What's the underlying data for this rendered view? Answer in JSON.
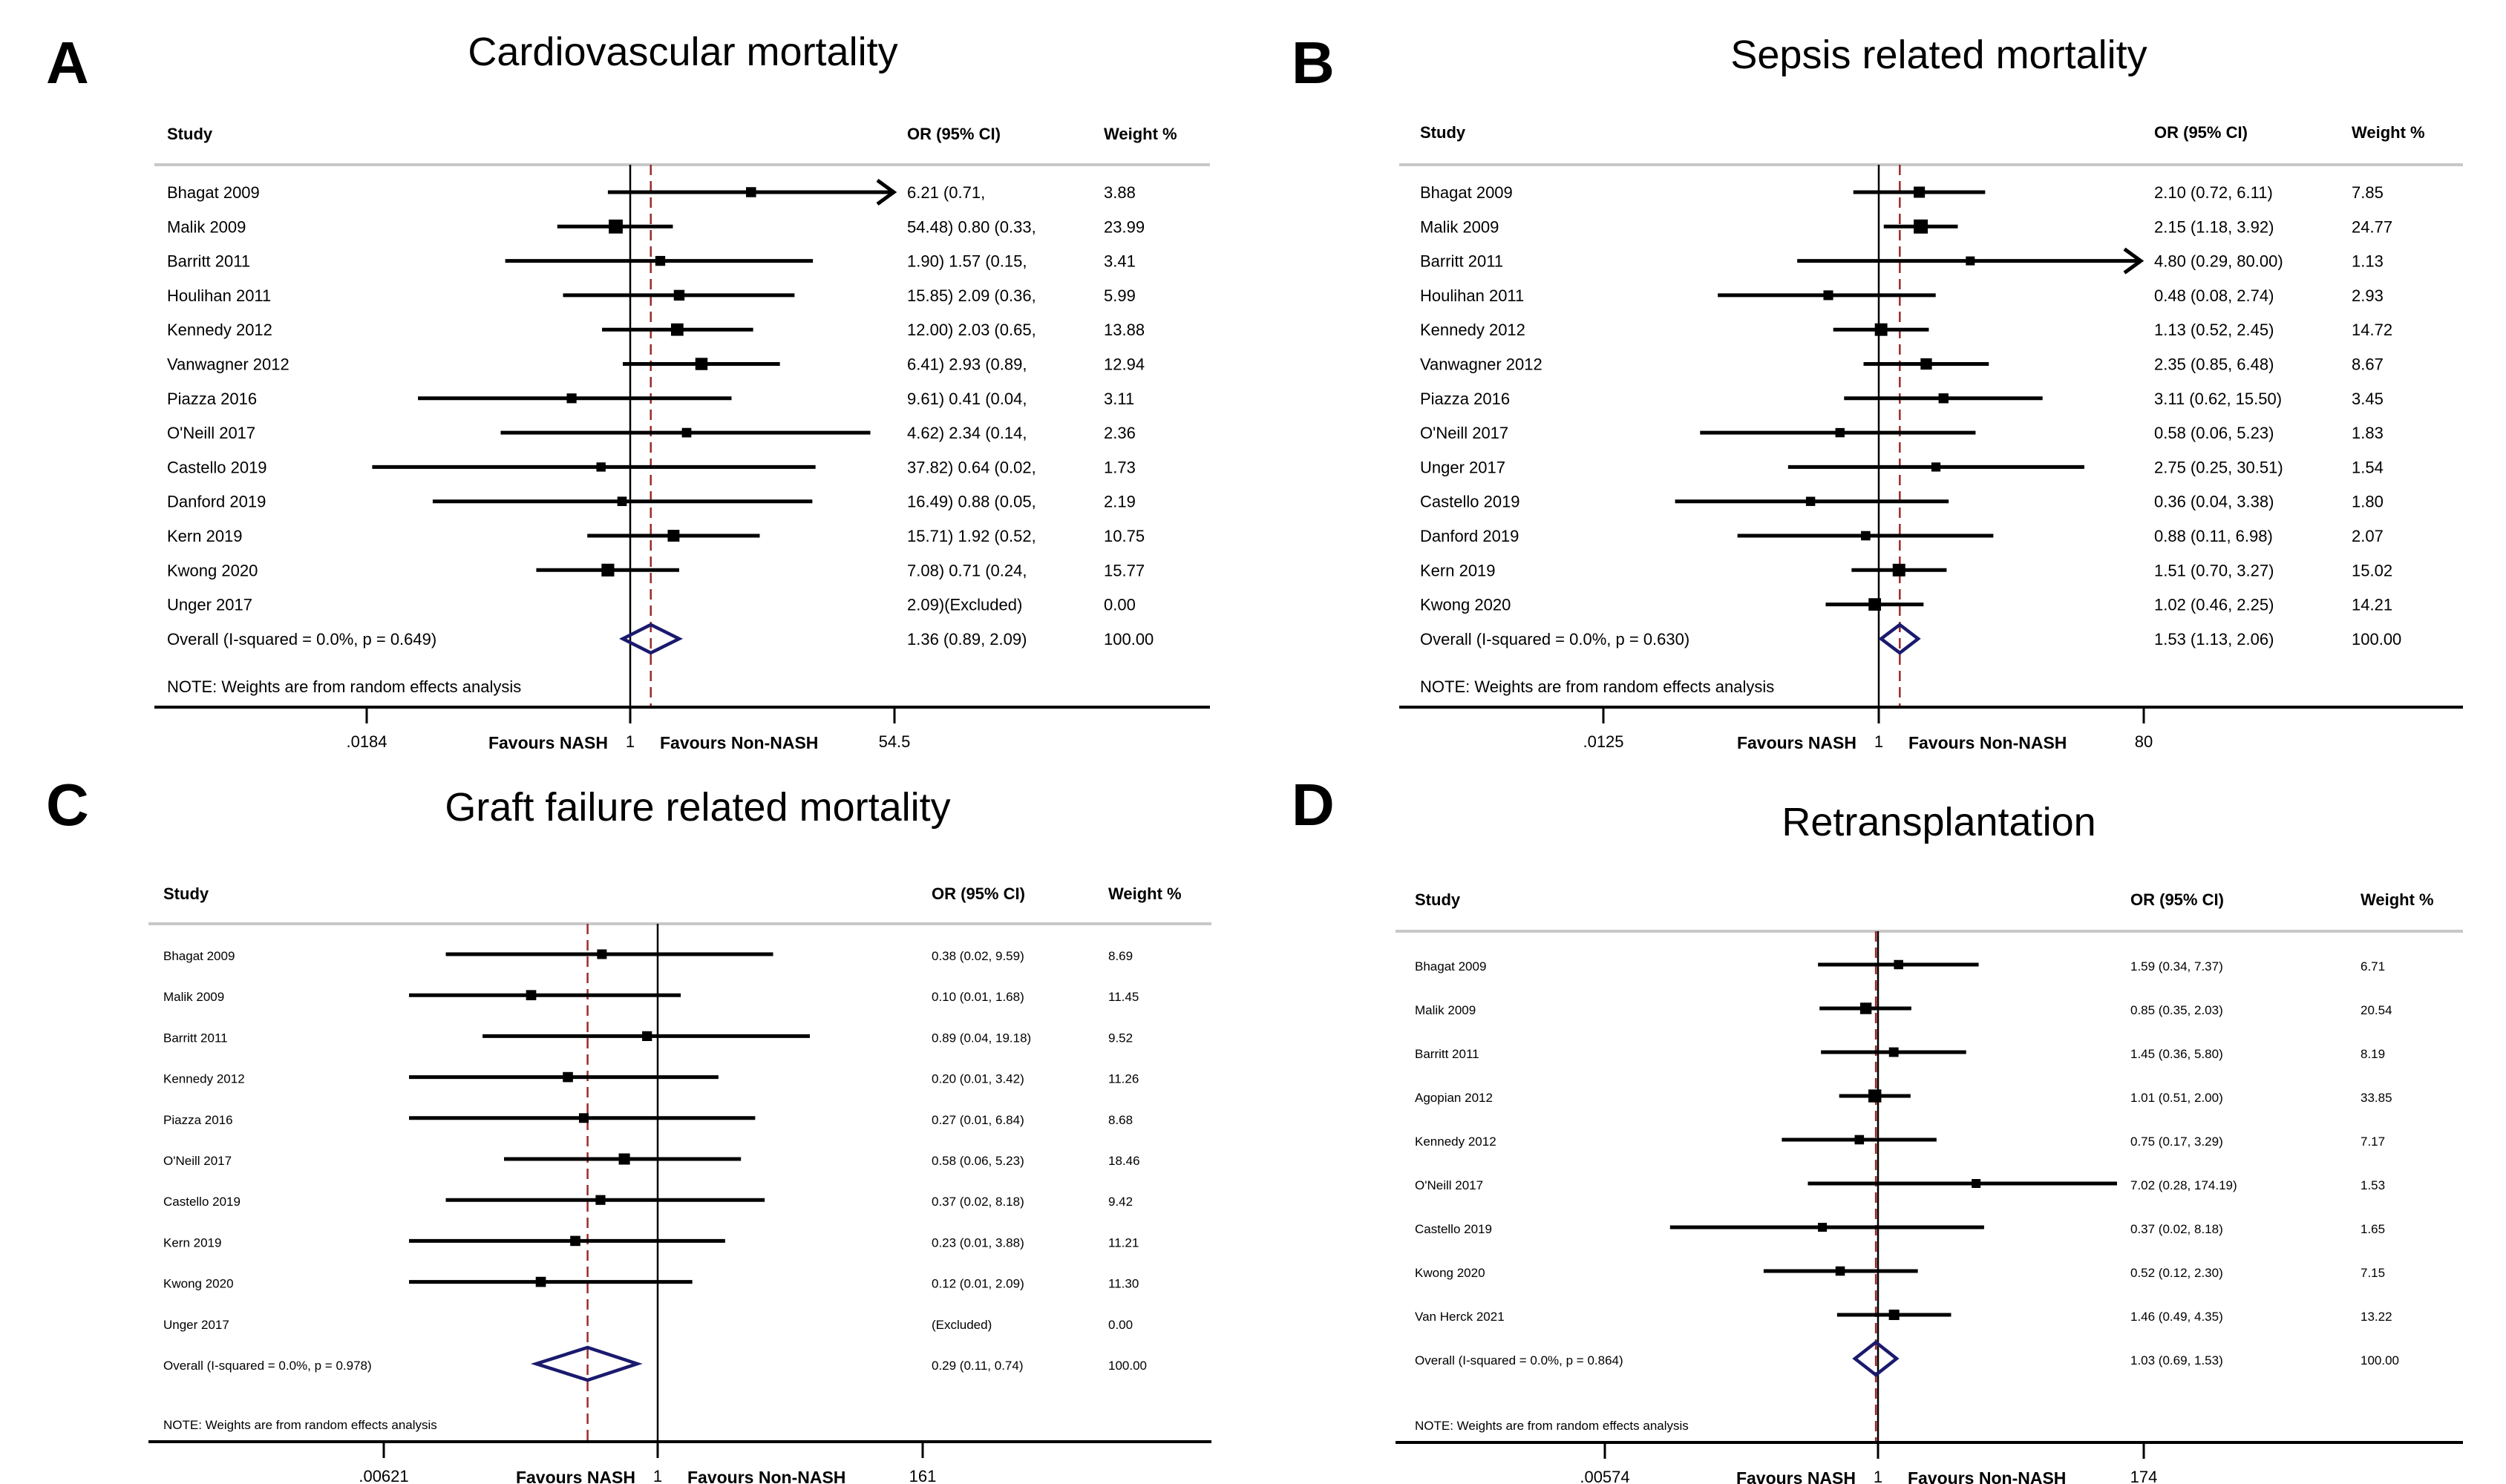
{
  "figure": {
    "panels_count": 4
  },
  "chart_data": [
    {
      "type": "forest",
      "panel_letter": "A",
      "title": "Cardiovascular mortality",
      "columns": {
        "study": "Study",
        "or": "OR (95% CI)",
        "weight": "Weight %"
      },
      "x_scale": "log",
      "xlim": [
        0.0184,
        54.5
      ],
      "ticks": [
        ".0184",
        "1",
        "54.5"
      ],
      "tick_values": [
        0.0184,
        1,
        54.5
      ],
      "favours_left": "Favours NASH",
      "favours_right": "Favours Non-NASH",
      "note": "NOTE: Weights are from random effects analysis",
      "studies": [
        {
          "name": "Bhagat 2009",
          "or": 6.21,
          "lo": 0.71,
          "hi": 54.48,
          "or_text": "6.21  (0.71,",
          "weight": "3.88",
          "arrow": true
        },
        {
          "name": "Malik 2009",
          "or": 0.8,
          "lo": 0.33,
          "hi": 1.9,
          "or_text": "54.48) 0.80  (0.33,",
          "weight": "23.99"
        },
        {
          "name": "Barritt 2011",
          "or": 1.57,
          "lo": 0.15,
          "hi": 15.85,
          "or_text": "1.90) 1.57  (0.15,",
          "weight": "3.41"
        },
        {
          "name": "Houlihan 2011",
          "or": 2.09,
          "lo": 0.36,
          "hi": 12.0,
          "or_text": "15.85) 2.09  (0.36,",
          "weight": "5.99"
        },
        {
          "name": "Kennedy 2012",
          "or": 2.03,
          "lo": 0.65,
          "hi": 6.41,
          "or_text": "12.00) 2.03  (0.65,",
          "weight": "13.88"
        },
        {
          "name": "Vanwagner 2012",
          "or": 2.93,
          "lo": 0.89,
          "hi": 9.61,
          "or_text": "6.41) 2.93  (0.89,",
          "weight": "12.94"
        },
        {
          "name": "Piazza 2016",
          "or": 0.41,
          "lo": 0.04,
          "hi": 4.62,
          "or_text": "9.61) 0.41  (0.04,",
          "weight": "3.11"
        },
        {
          "name": "O'Neill 2017",
          "or": 2.34,
          "lo": 0.14,
          "hi": 37.82,
          "or_text": "4.62) 2.34  (0.14,",
          "weight": "2.36"
        },
        {
          "name": "Castello 2019",
          "or": 0.64,
          "lo": 0.02,
          "hi": 16.49,
          "or_text": "37.82) 0.64  (0.02,",
          "weight": "1.73"
        },
        {
          "name": "Danford 2019",
          "or": 0.88,
          "lo": 0.05,
          "hi": 15.71,
          "or_text": "16.49) 0.88  (0.05,",
          "weight": "2.19"
        },
        {
          "name": "Kern 2019",
          "or": 1.92,
          "lo": 0.52,
          "hi": 7.08,
          "or_text": "15.71) 1.92  (0.52,",
          "weight": "10.75"
        },
        {
          "name": "Kwong 2020",
          "or": 0.71,
          "lo": 0.24,
          "hi": 2.09,
          "or_text": "7.08) 0.71  (0.24,",
          "weight": "15.77"
        },
        {
          "name": "Unger 2017",
          "or": null,
          "lo": null,
          "hi": null,
          "or_text": "2.09)(Excluded)",
          "weight": "0.00",
          "excluded": true
        }
      ],
      "overall": {
        "label": "Overall  (I-squared = 0.0%, p = 0.649)",
        "or": 1.36,
        "lo": 0.89,
        "hi": 2.09,
        "or_text": "1.36  (0.89,  2.09)",
        "weight": "100.00"
      }
    },
    {
      "type": "forest",
      "panel_letter": "B",
      "title": "Sepsis related mortality",
      "columns": {
        "study": "Study",
        "or": "OR (95% CI)",
        "weight": "Weight %"
      },
      "x_scale": "log",
      "xlim": [
        0.0125,
        80
      ],
      "ticks": [
        ".0125",
        "1",
        "80"
      ],
      "tick_values": [
        0.0125,
        1,
        80
      ],
      "favours_left": "Favours NASH",
      "favours_right": "Favours Non-NASH",
      "note": "NOTE: Weights are from random effects analysis",
      "studies": [
        {
          "name": "Bhagat 2009",
          "or": 2.1,
          "lo": 0.72,
          "hi": 6.11,
          "or_text": "2.10 (0.72, 6.11)",
          "weight": "7.85"
        },
        {
          "name": "Malik 2009",
          "or": 2.15,
          "lo": 1.18,
          "hi": 3.92,
          "or_text": "2.15 (1.18, 3.92)",
          "weight": "24.77"
        },
        {
          "name": "Barritt 2011",
          "or": 4.8,
          "lo": 0.29,
          "hi": 80.0,
          "or_text": "4.80 (0.29, 80.00)",
          "weight": "1.13",
          "arrow": true
        },
        {
          "name": "Houlihan 2011",
          "or": 0.48,
          "lo": 0.08,
          "hi": 2.74,
          "or_text": "0.48 (0.08, 2.74)",
          "weight": "2.93"
        },
        {
          "name": "Kennedy 2012",
          "or": 1.13,
          "lo": 0.52,
          "hi": 2.45,
          "or_text": "1.13 (0.52, 2.45)",
          "weight": "14.72"
        },
        {
          "name": "Vanwagner 2012",
          "or": 2.35,
          "lo": 0.85,
          "hi": 6.48,
          "or_text": "2.35 (0.85, 6.48)",
          "weight": "8.67"
        },
        {
          "name": "Piazza 2016",
          "or": 3.11,
          "lo": 0.62,
          "hi": 15.5,
          "or_text": "3.11 (0.62, 15.50)",
          "weight": "3.45"
        },
        {
          "name": "O'Neill 2017",
          "or": 0.58,
          "lo": 0.06,
          "hi": 5.23,
          "or_text": "0.58 (0.06, 5.23)",
          "weight": "1.83"
        },
        {
          "name": "Unger 2017",
          "or": 2.75,
          "lo": 0.25,
          "hi": 30.51,
          "or_text": "2.75 (0.25, 30.51)",
          "weight": "1.54"
        },
        {
          "name": "Castello 2019",
          "or": 0.36,
          "lo": 0.04,
          "hi": 3.38,
          "or_text": "0.36 (0.04, 3.38)",
          "weight": "1.80"
        },
        {
          "name": "Danford 2019",
          "or": 0.88,
          "lo": 0.11,
          "hi": 6.98,
          "or_text": "0.88 (0.11, 6.98)",
          "weight": "2.07"
        },
        {
          "name": "Kern 2019",
          "or": 1.51,
          "lo": 0.7,
          "hi": 3.27,
          "or_text": "1.51 (0.70, 3.27)",
          "weight": "15.02"
        },
        {
          "name": "Kwong 2020",
          "or": 1.02,
          "lo": 0.46,
          "hi": 2.25,
          "or_text": "1.02 (0.46, 2.25)",
          "weight": "14.21"
        }
      ],
      "overall": {
        "label": "Overall  (I-squared = 0.0%, p = 0.630)",
        "or": 1.53,
        "lo": 1.13,
        "hi": 2.06,
        "or_text": "1.53 (1.13, 2.06)",
        "weight": "100.00"
      }
    },
    {
      "type": "forest",
      "panel_letter": "C",
      "title": "Graft failure related mortality",
      "columns": {
        "study": "Study",
        "or": "OR (95% CI)",
        "weight": "Weight %"
      },
      "x_scale": "log",
      "xlim": [
        0.00621,
        161
      ],
      "ticks": [
        ".00621",
        "1",
        "161"
      ],
      "tick_values": [
        0.00621,
        1,
        161
      ],
      "favours_left": "Favours NASH",
      "favours_right": "Favours Non-NASH",
      "note": "NOTE: Weights are from random effects analysis",
      "studies": [
        {
          "name": "Bhagat 2009",
          "or": 0.38,
          "lo": 0.02,
          "hi": 9.59,
          "or_text": "0.38 (0.02, 9.59)",
          "weight": "8.69"
        },
        {
          "name": "Malik 2009",
          "or": 0.1,
          "lo": 0.01,
          "hi": 1.68,
          "or_text": "0.10 (0.01, 1.68)",
          "weight": "11.45"
        },
        {
          "name": "Barritt 2011",
          "or": 0.89,
          "lo": 0.04,
          "hi": 19.18,
          "or_text": "0.89 (0.04, 19.18)",
          "weight": "9.52"
        },
        {
          "name": "Kennedy 2012",
          "or": 0.2,
          "lo": 0.01,
          "hi": 3.42,
          "or_text": "0.20 (0.01, 3.42)",
          "weight": "11.26"
        },
        {
          "name": "Piazza 2016",
          "or": 0.27,
          "lo": 0.01,
          "hi": 6.84,
          "or_text": "0.27 (0.01, 6.84)",
          "weight": "8.68"
        },
        {
          "name": "O'Neill 2017",
          "or": 0.58,
          "lo": 0.06,
          "hi": 5.23,
          "or_text": "0.58 (0.06, 5.23)",
          "weight": "18.46"
        },
        {
          "name": "Castello 2019",
          "or": 0.37,
          "lo": 0.02,
          "hi": 8.18,
          "or_text": "0.37 (0.02, 8.18)",
          "weight": "9.42"
        },
        {
          "name": "Kern 2019",
          "or": 0.23,
          "lo": 0.01,
          "hi": 3.88,
          "or_text": "0.23 (0.01, 3.88)",
          "weight": "11.21"
        },
        {
          "name": "Kwong 2020",
          "or": 0.12,
          "lo": 0.01,
          "hi": 2.09,
          "or_text": "0.12 (0.01, 2.09)",
          "weight": "11.30"
        },
        {
          "name": "Unger 2017",
          "or": null,
          "lo": null,
          "hi": null,
          "or_text": "(Excluded)",
          "weight": "0.00",
          "excluded": true
        }
      ],
      "overall": {
        "label": "Overall  (I-squared = 0.0%, p = 0.978)",
        "or": 0.29,
        "lo": 0.11,
        "hi": 0.74,
        "or_text": "0.29 (0.11, 0.74)",
        "weight": "100.00"
      }
    },
    {
      "type": "forest",
      "panel_letter": "D",
      "title": "Retransplantation",
      "columns": {
        "study": "Study",
        "or": "OR (95% CI)",
        "weight": "Weight %"
      },
      "x_scale": "log",
      "xlim": [
        0.00574,
        174
      ],
      "ticks": [
        ".00574",
        "1",
        "174"
      ],
      "tick_values": [
        0.00574,
        1,
        174
      ],
      "favours_left": "Favours NASH",
      "favours_right": "Favours Non-NASH",
      "note": "NOTE: Weights are from random effects analysis",
      "studies": [
        {
          "name": "Bhagat 2009",
          "or": 1.59,
          "lo": 0.34,
          "hi": 7.37,
          "or_text": "1.59 (0.34, 7.37)",
          "weight": "6.71"
        },
        {
          "name": "Malik 2009",
          "or": 0.85,
          "lo": 0.35,
          "hi": 2.03,
          "or_text": "0.85 (0.35, 2.03)",
          "weight": "20.54"
        },
        {
          "name": "Barritt 2011",
          "or": 1.45,
          "lo": 0.36,
          "hi": 5.8,
          "or_text": "1.45 (0.36, 5.80)",
          "weight": "8.19"
        },
        {
          "name": "Agopian 2012",
          "or": 1.01,
          "lo": 0.51,
          "hi": 2.0,
          "or_text": "1.01 (0.51, 2.00)",
          "weight": "33.85"
        },
        {
          "name": "Kennedy 2012",
          "or": 0.75,
          "lo": 0.17,
          "hi": 3.29,
          "or_text": "0.75 (0.17, 3.29)",
          "weight": "7.17"
        },
        {
          "name": "O'Neill 2017",
          "or": 7.02,
          "lo": 0.28,
          "hi": 174.19,
          "or_text": "7.02 (0.28, 174.19)",
          "weight": "1.53"
        },
        {
          "name": "Castello 2019",
          "or": 0.37,
          "lo": 0.02,
          "hi": 8.18,
          "or_text": "0.37 (0.02, 8.18)",
          "weight": "1.65"
        },
        {
          "name": "Kwong 2020",
          "or": 0.52,
          "lo": 0.12,
          "hi": 2.3,
          "or_text": "0.52 (0.12, 2.30)",
          "weight": "7.15"
        },
        {
          "name": "Van Herck 2021",
          "or": 1.46,
          "lo": 0.49,
          "hi": 4.35,
          "or_text": "1.46 (0.49, 4.35)",
          "weight": "13.22"
        }
      ],
      "overall": {
        "label": "Overall  (I-squared = 0.0%, p = 0.864)",
        "or": 1.03,
        "lo": 0.69,
        "hi": 1.53,
        "or_text": "1.03 (0.69, 1.53)",
        "weight": "100.00"
      }
    }
  ],
  "colors": {
    "diamond": "#1a1a6e",
    "overall_line": "#9b2a2a",
    "header_rule": "#c8c8c8",
    "ink": "#000000"
  }
}
